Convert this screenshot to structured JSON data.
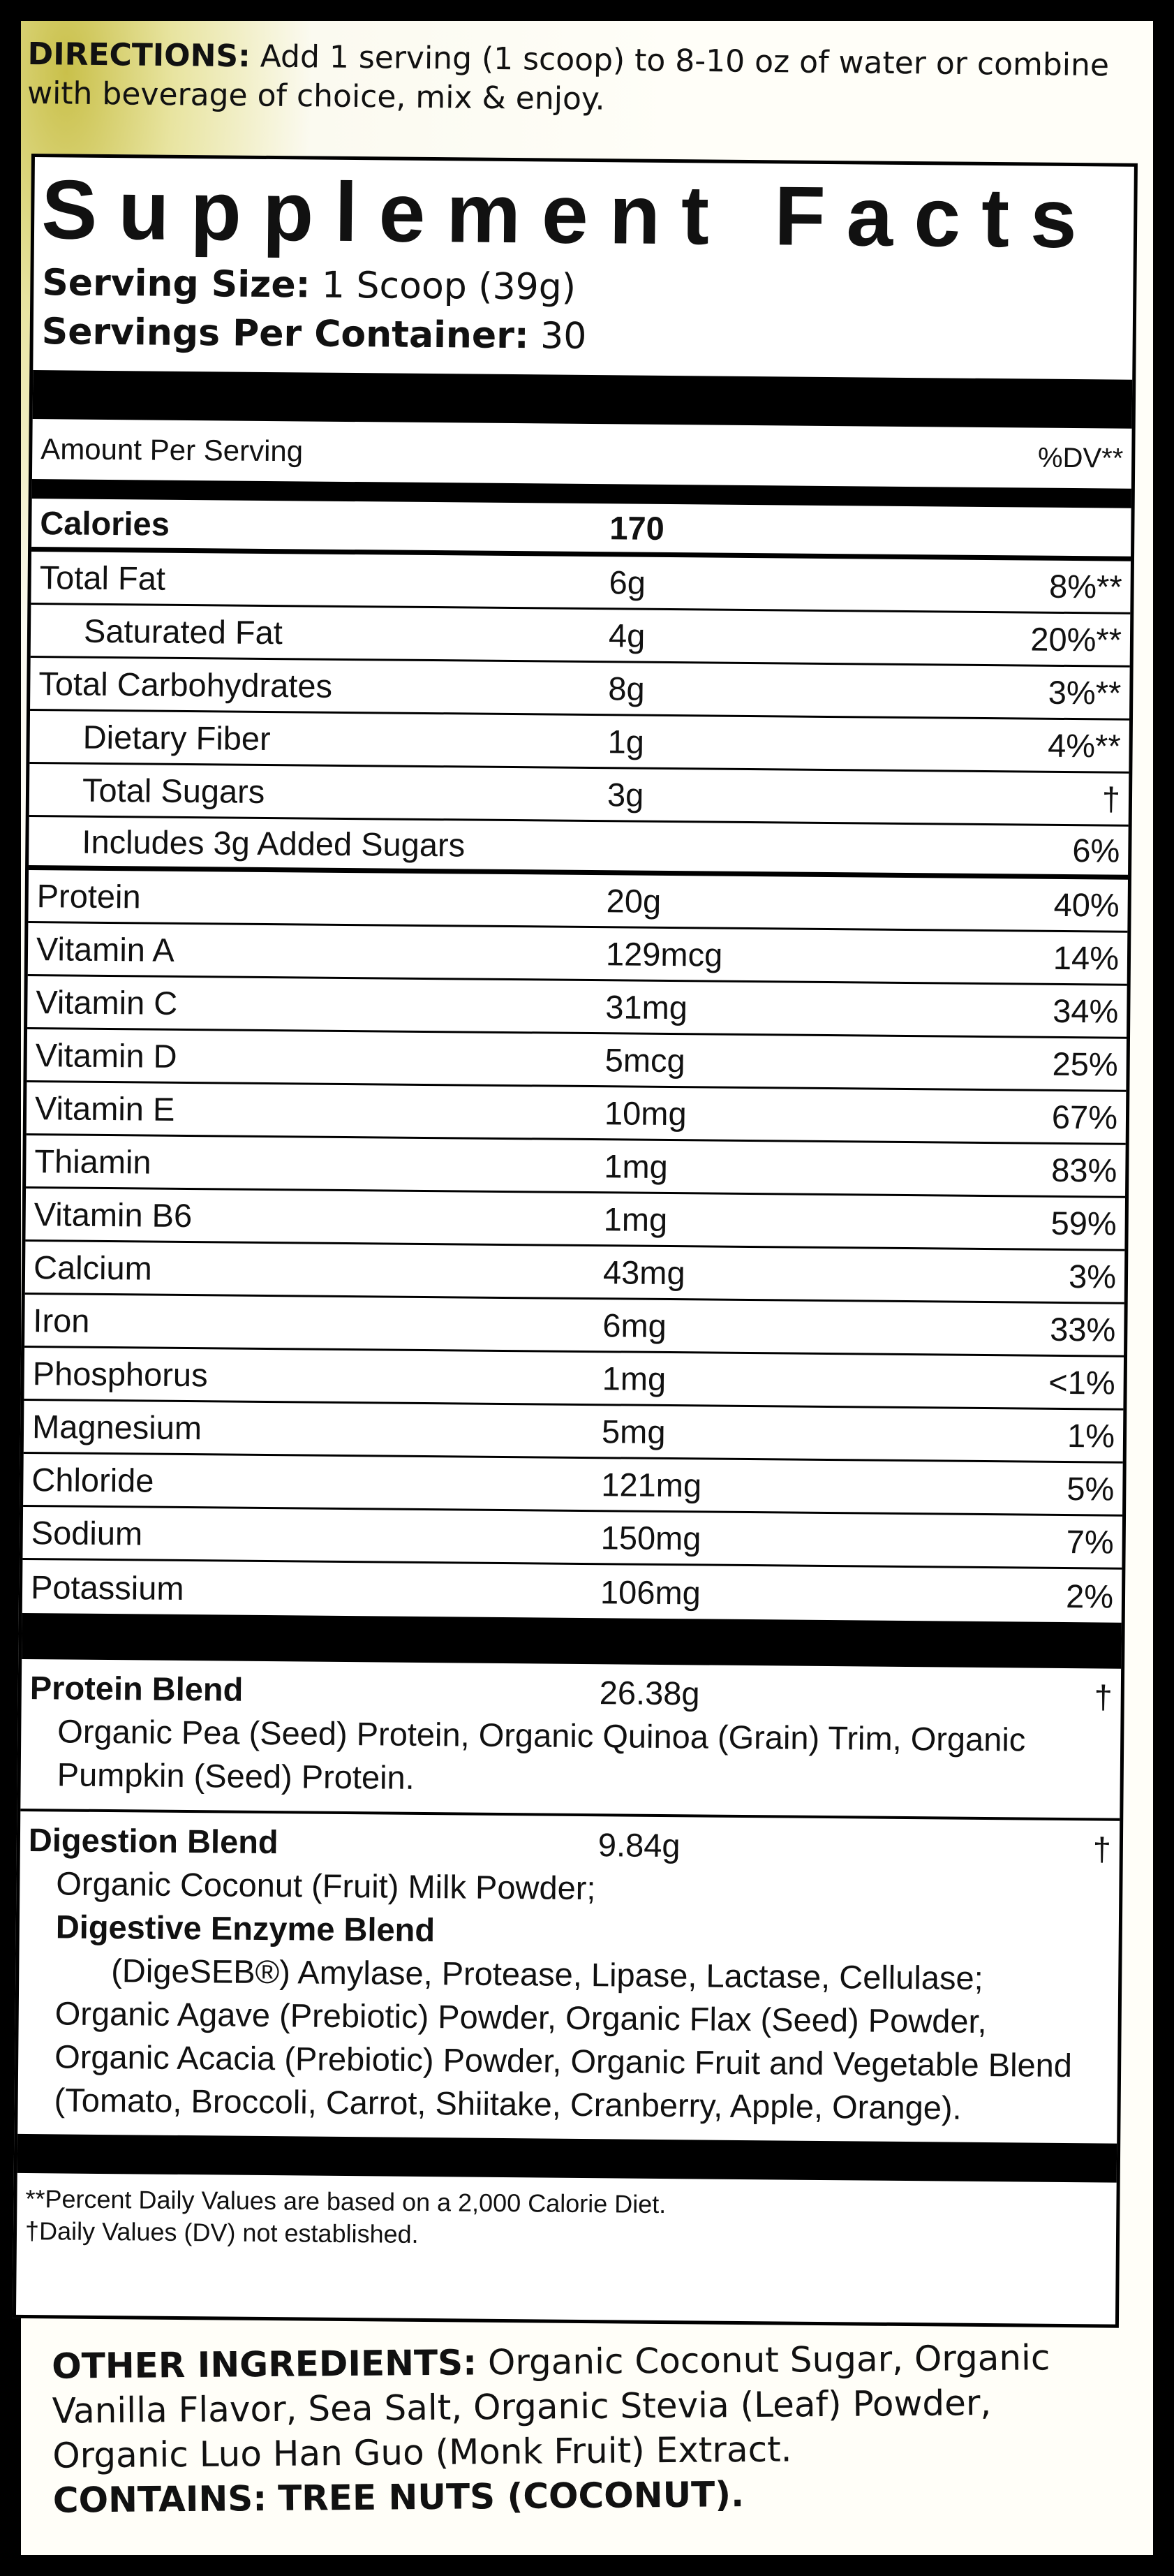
{
  "directions": {
    "label": "DIRECTIONS:",
    "text": "Add 1 serving (1 scoop) to 8-10 oz of water or combine with beverage of choice, mix & enjoy."
  },
  "facts": {
    "title": "Supplement Facts",
    "serving_size_label": "Serving Size:",
    "serving_size": "1 Scoop (39g)",
    "servings_label": "Servings Per Container:",
    "servings": "30",
    "amount_header": "Amount Per Serving",
    "dv_header": "%DV**",
    "rows": [
      {
        "name": "Calories",
        "amount": "170",
        "dv": ""
      },
      {
        "name": "Total Fat",
        "amount": "6g",
        "dv": "8%**"
      },
      {
        "name": "Saturated Fat",
        "amount": "4g",
        "dv": "20%**"
      },
      {
        "name": "Total Carbohydrates",
        "amount": "8g",
        "dv": "3%**"
      },
      {
        "name": "Dietary Fiber",
        "amount": "1g",
        "dv": "4%**"
      },
      {
        "name": "Total Sugars",
        "amount": "3g",
        "dv": "†"
      },
      {
        "name": "Includes 3g Added Sugars",
        "amount": "",
        "dv": "6%"
      },
      {
        "name": "Protein",
        "amount": "20g",
        "dv": "40%"
      },
      {
        "name": "Vitamin A",
        "amount": "129mcg",
        "dv": "14%"
      },
      {
        "name": "Vitamin C",
        "amount": "31mg",
        "dv": "34%"
      },
      {
        "name": "Vitamin D",
        "amount": "5mcg",
        "dv": "25%"
      },
      {
        "name": "Vitamin E",
        "amount": "10mg",
        "dv": "67%"
      },
      {
        "name": "Thiamin",
        "amount": "1mg",
        "dv": "83%"
      },
      {
        "name": "Vitamin B6",
        "amount": "1mg",
        "dv": "59%"
      },
      {
        "name": "Calcium",
        "amount": "43mg",
        "dv": "3%"
      },
      {
        "name": "Iron",
        "amount": "6mg",
        "dv": "33%"
      },
      {
        "name": "Phosphorus",
        "amount": "1mg",
        "dv": "<1%"
      },
      {
        "name": "Magnesium",
        "amount": "5mg",
        "dv": "1%"
      },
      {
        "name": "Chloride",
        "amount": "121mg",
        "dv": "5%"
      },
      {
        "name": "Sodium",
        "amount": "150mg",
        "dv": "7%"
      },
      {
        "name": "Potassium",
        "amount": "106mg",
        "dv": "2%"
      }
    ],
    "protein_blend": {
      "name": "Protein Blend",
      "amount": "26.38g",
      "dv": "†",
      "ingredients": "Organic Pea (Seed) Protein, Organic Quinoa (Grain) Trim, Organic Pumpkin (Seed) Protein."
    },
    "digestion_blend": {
      "name": "Digestion Blend",
      "amount": "9.84g",
      "dv": "†",
      "line1": "Organic Coconut (Fruit) Milk Powder;",
      "sub_name": "Digestive Enzyme Blend",
      "sub_ingredients": "(DigeSEB®) Amylase, Protease, Lipase, Lactase, Cellulase;",
      "rest": "Organic Agave (Prebiotic) Powder, Organic Flax (Seed) Powder, Organic Acacia (Prebiotic) Powder, Organic Fruit and Vegetable Blend (Tomato, Broccoli, Carrot, Shiitake, Cranberry, Apple, Orange)."
    },
    "footnote1": "**Percent Daily Values are based on a 2,000 Calorie Diet.",
    "footnote2": "†Daily Values (DV) not established."
  },
  "other": {
    "label": "OTHER INGREDIENTS:",
    "text": "Organic Coconut Sugar, Organic Vanilla Flavor, Sea Salt, Organic Stevia (Leaf) Powder, Organic Luo Han Guo (Monk Fruit) Extract.",
    "contains_label": "CONTAINS:",
    "contains": "TREE NUTS (COCONUT)."
  }
}
